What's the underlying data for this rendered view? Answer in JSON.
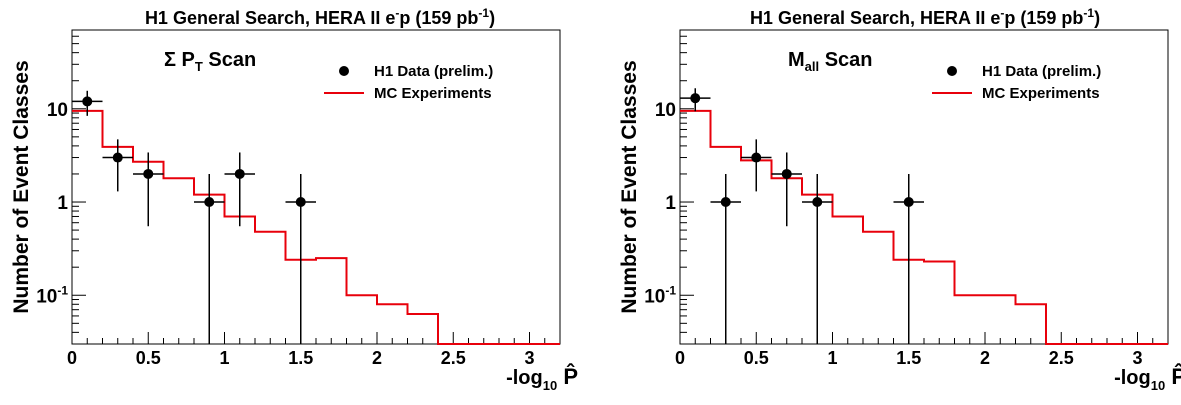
{
  "chart_data": [
    {
      "type": "step",
      "title": {
        "main": "H1 General Search, HERA II e",
        "sup1": "-",
        "mid": "p (159 pb",
        "sup2": "-1",
        "end": ")"
      },
      "panel_label": {
        "main": "Σ P",
        "sub": "T",
        "end": " Scan"
      },
      "ylabel": "Number of Event Classes",
      "xlabel": {
        "main": "-log",
        "sub": "10",
        "symbol": "P̂"
      },
      "xlim": [
        0,
        3.2
      ],
      "ylim": [
        0.03,
        70
      ],
      "yscale": "log",
      "x_ticks": [
        {
          "v": 0,
          "label": "0"
        },
        {
          "v": 0.5,
          "label": "0.5"
        },
        {
          "v": 1,
          "label": "1"
        },
        {
          "v": 1.5,
          "label": "1.5"
        },
        {
          "v": 2,
          "label": "2"
        },
        {
          "v": 2.5,
          "label": "2.5"
        },
        {
          "v": 3,
          "label": "3"
        }
      ],
      "y_ticks": [
        {
          "v": 0.1,
          "label": "10",
          "sup": "-1"
        },
        {
          "v": 1,
          "label": "1",
          "sup": ""
        },
        {
          "v": 10,
          "label": "10",
          "sup": ""
        }
      ],
      "legend": [
        {
          "label": "H1 Data (prelim.)",
          "kind": "marker"
        },
        {
          "label": "MC Experiments",
          "kind": "line",
          "color": "#e8000b"
        }
      ],
      "mc_step": {
        "edges": [
          0,
          0.2,
          0.4,
          0.6,
          0.8,
          1.0,
          1.2,
          1.4,
          1.6,
          1.8,
          2.0,
          2.2,
          2.4,
          2.6,
          2.8,
          3.0,
          3.2
        ],
        "values": [
          9.5,
          3.9,
          2.7,
          1.8,
          1.2,
          0.7,
          0.48,
          0.24,
          0.25,
          0.1,
          0.08,
          0.063,
          0.02,
          0.02,
          0.02,
          0.03
        ]
      },
      "data_points": [
        {
          "x": 0.1,
          "y": 12,
          "ylo": 8.4,
          "yhi": 15.6
        },
        {
          "x": 0.3,
          "y": 3,
          "ylo": 1.3,
          "yhi": 4.7
        },
        {
          "x": 0.5,
          "y": 2,
          "ylo": 0.55,
          "yhi": 3.4
        },
        {
          "x": 0.9,
          "y": 1,
          "ylo": 0.0001,
          "yhi": 2.0
        },
        {
          "x": 1.1,
          "y": 2,
          "ylo": 0.55,
          "yhi": 3.4
        },
        {
          "x": 1.5,
          "y": 1,
          "ylo": 0.0001,
          "yhi": 2.0
        }
      ],
      "marker_color": "#000000"
    },
    {
      "type": "step",
      "title": {
        "main": "H1 General Search, HERA II e",
        "sup1": "-",
        "mid": "p (159 pb",
        "sup2": "-1",
        "end": ")"
      },
      "panel_label": {
        "main": "M",
        "sub": "all",
        "end": " Scan"
      },
      "ylabel": "Number of Event Classes",
      "xlabel": {
        "main": "-log",
        "sub": "10",
        "symbol": "P̂"
      },
      "xlim": [
        0,
        3.2
      ],
      "ylim": [
        0.03,
        70
      ],
      "yscale": "log",
      "x_ticks": [
        {
          "v": 0,
          "label": "0"
        },
        {
          "v": 0.5,
          "label": "0.5"
        },
        {
          "v": 1,
          "label": "1"
        },
        {
          "v": 1.5,
          "label": "1.5"
        },
        {
          "v": 2,
          "label": "2"
        },
        {
          "v": 2.5,
          "label": "2.5"
        },
        {
          "v": 3,
          "label": "3"
        }
      ],
      "y_ticks": [
        {
          "v": 0.1,
          "label": "10",
          "sup": "-1"
        },
        {
          "v": 1,
          "label": "1",
          "sup": ""
        },
        {
          "v": 10,
          "label": "10",
          "sup": ""
        }
      ],
      "legend": [
        {
          "label": "H1 Data (prelim.)",
          "kind": "marker"
        },
        {
          "label": "MC Experiments",
          "kind": "line",
          "color": "#e8000b"
        }
      ],
      "mc_step": {
        "edges": [
          0,
          0.2,
          0.4,
          0.6,
          0.8,
          1.0,
          1.2,
          1.4,
          1.6,
          1.8,
          2.0,
          2.2,
          2.4,
          2.6,
          2.8,
          3.0,
          3.2
        ],
        "values": [
          9.5,
          3.9,
          2.8,
          1.8,
          1.2,
          0.7,
          0.48,
          0.24,
          0.23,
          0.1,
          0.1,
          0.08,
          0.02,
          0.02,
          0.02,
          0.03
        ]
      },
      "data_points": [
        {
          "x": 0.1,
          "y": 13,
          "ylo": 9.4,
          "yhi": 16.6
        },
        {
          "x": 0.3,
          "y": 1,
          "ylo": 0.0001,
          "yhi": 2.0
        },
        {
          "x": 0.5,
          "y": 3,
          "ylo": 1.3,
          "yhi": 4.7
        },
        {
          "x": 0.7,
          "y": 2,
          "ylo": 0.55,
          "yhi": 3.4
        },
        {
          "x": 0.9,
          "y": 1,
          "ylo": 0.0001,
          "yhi": 2.0
        },
        {
          "x": 1.5,
          "y": 1,
          "ylo": 0.0001,
          "yhi": 2.0
        }
      ],
      "marker_color": "#000000"
    }
  ]
}
